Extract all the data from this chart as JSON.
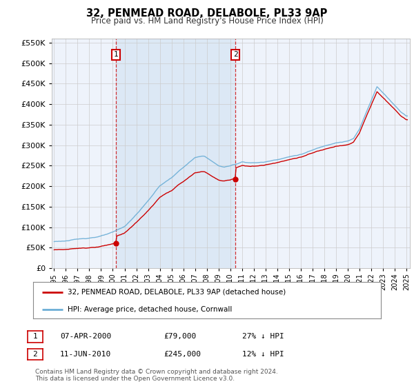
{
  "title": "32, PENMEAD ROAD, DELABOLE, PL33 9AP",
  "subtitle": "Price paid vs. HM Land Registry's House Price Index (HPI)",
  "legend_line1": "32, PENMEAD ROAD, DELABOLE, PL33 9AP (detached house)",
  "legend_line2": "HPI: Average price, detached house, Cornwall",
  "annotation1_label": "1",
  "annotation1_date": "07-APR-2000",
  "annotation1_price": "£79,000",
  "annotation1_hpi": "27% ↓ HPI",
  "annotation1_year": 2000.27,
  "annotation1_value": 79000,
  "annotation2_label": "2",
  "annotation2_date": "11-JUN-2010",
  "annotation2_price": "£245,000",
  "annotation2_hpi": "12% ↓ HPI",
  "annotation2_year": 2010.44,
  "annotation2_value": 245000,
  "red_line_color": "#cc0000",
  "blue_line_color": "#6baed6",
  "annotation_box_color": "#cc0000",
  "grid_color": "#cccccc",
  "background_color": "#ffffff",
  "plot_bg_color": "#eef3fb",
  "highlight_bg_color": "#dce8f5",
  "ylim": [
    0,
    560000
  ],
  "yticks": [
    0,
    50000,
    100000,
    150000,
    200000,
    250000,
    300000,
    350000,
    400000,
    450000,
    500000,
    550000
  ],
  "footer": "Contains HM Land Registry data © Crown copyright and database right 2024.\nThis data is licensed under the Open Government Licence v3.0."
}
